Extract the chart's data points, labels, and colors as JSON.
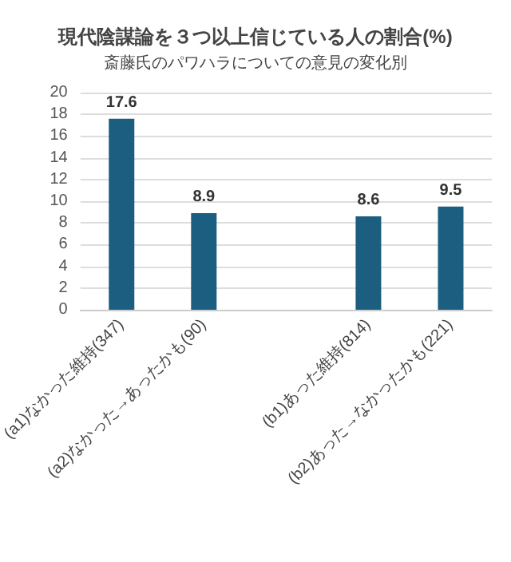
{
  "chart_data": {
    "type": "bar",
    "title": "現代陰謀論を３つ以上信じている人の割合(%)",
    "subtitle": "斎藤氏のパワハラについての意見の変化別",
    "categories": [
      "(a1)なかった維持(347)",
      "(a2)なかった→あったかも(90)",
      null,
      "(b1)あった維持(814)",
      "(b2)あった→なかったかも(221)"
    ],
    "values": [
      17.6,
      8.9,
      null,
      8.6,
      9.5
    ],
    "color": "#1b5e80",
    "data_labels": true,
    "ylim": [
      0,
      20
    ],
    "yticks": [
      0,
      2,
      4,
      6,
      8,
      10,
      12,
      14,
      16,
      18,
      20
    ],
    "grid": "y"
  }
}
